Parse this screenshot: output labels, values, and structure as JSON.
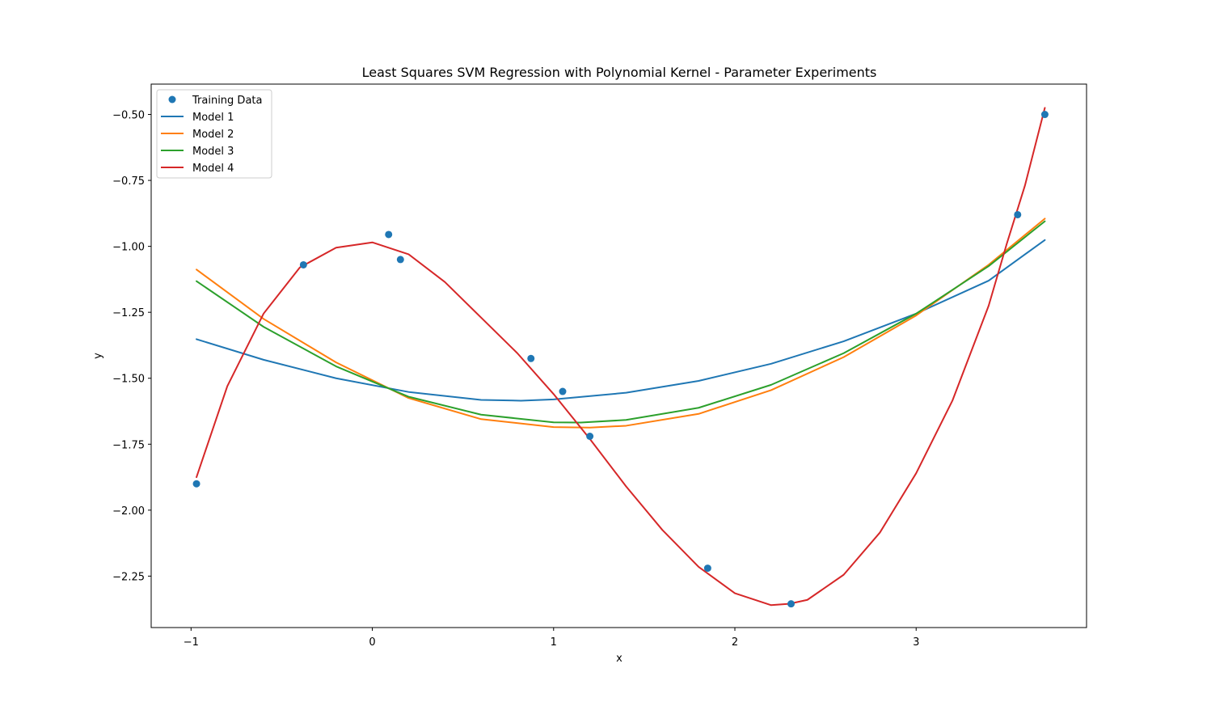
{
  "chart_data": {
    "type": "line",
    "title": "Least Squares SVM Regression with Polynomial Kernel - Parameter Experiments",
    "xlabel": "x",
    "ylabel": "y",
    "xlim": [
      -1.22,
      3.94
    ],
    "ylim": [
      -2.445,
      -0.385
    ],
    "xticks": [
      -1,
      0,
      1,
      2,
      3
    ],
    "xtick_labels": [
      "−1",
      "0",
      "1",
      "2",
      "3"
    ],
    "yticks": [
      -0.5,
      -0.75,
      -1.0,
      -1.25,
      -1.5,
      -1.75,
      -2.0,
      -2.25
    ],
    "ytick_labels": [
      "−0.50",
      "−0.75",
      "−1.00",
      "−1.25",
      "−1.50",
      "−1.75",
      "−2.00",
      "−2.25"
    ],
    "grid": false,
    "legend_location": "upper-left",
    "scatter": {
      "name": "Training Data",
      "color": "#1f77b4",
      "x": [
        -0.97,
        -0.38,
        0.09,
        0.155,
        0.875,
        1.05,
        1.2,
        1.85,
        2.31,
        3.56,
        3.71
      ],
      "y": [
        -1.9,
        -1.07,
        -0.955,
        -1.05,
        -1.425,
        -1.55,
        -1.72,
        -2.22,
        -2.355,
        -0.88,
        -0.5
      ]
    },
    "series": [
      {
        "name": "Model 1",
        "color": "#1f77b4",
        "x": [
          -0.97,
          -0.6,
          -0.2,
          0.2,
          0.6,
          0.82,
          1.0,
          1.4,
          1.8,
          2.2,
          2.6,
          3.0,
          3.4,
          3.71
        ],
        "y": [
          -1.352,
          -1.43,
          -1.5,
          -1.552,
          -1.582,
          -1.585,
          -1.58,
          -1.555,
          -1.51,
          -1.445,
          -1.36,
          -1.255,
          -1.13,
          -0.976
        ]
      },
      {
        "name": "Model 2",
        "color": "#ff7f0e",
        "x": [
          -0.97,
          -0.6,
          -0.2,
          0.2,
          0.6,
          1.0,
          1.2,
          1.4,
          1.8,
          2.2,
          2.6,
          3.0,
          3.4,
          3.71
        ],
        "y": [
          -1.088,
          -1.275,
          -1.44,
          -1.575,
          -1.655,
          -1.685,
          -1.687,
          -1.68,
          -1.635,
          -1.545,
          -1.42,
          -1.262,
          -1.07,
          -0.895
        ]
      },
      {
        "name": "Model 3",
        "color": "#2ca02c",
        "x": [
          -0.97,
          -0.6,
          -0.2,
          0.2,
          0.6,
          1.0,
          1.15,
          1.4,
          1.8,
          2.2,
          2.6,
          3.0,
          3.4,
          3.71
        ],
        "y": [
          -1.132,
          -1.305,
          -1.455,
          -1.57,
          -1.638,
          -1.667,
          -1.668,
          -1.658,
          -1.612,
          -1.525,
          -1.405,
          -1.255,
          -1.075,
          -0.905
        ]
      },
      {
        "name": "Model 4",
        "color": "#d62728",
        "x": [
          -0.97,
          -0.8,
          -0.6,
          -0.4,
          -0.2,
          0.0,
          0.2,
          0.4,
          0.6,
          0.8,
          1.0,
          1.2,
          1.4,
          1.6,
          1.8,
          2.0,
          2.2,
          2.3,
          2.4,
          2.6,
          2.8,
          3.0,
          3.2,
          3.4,
          3.5,
          3.6,
          3.71
        ],
        "y": [
          -1.875,
          -1.53,
          -1.255,
          -1.08,
          -1.005,
          -0.985,
          -1.03,
          -1.135,
          -1.27,
          -1.405,
          -1.56,
          -1.73,
          -1.91,
          -2.075,
          -2.215,
          -2.315,
          -2.36,
          -2.355,
          -2.34,
          -2.245,
          -2.085,
          -1.86,
          -1.585,
          -1.225,
          -0.99,
          -0.77,
          -0.475
        ]
      }
    ]
  }
}
